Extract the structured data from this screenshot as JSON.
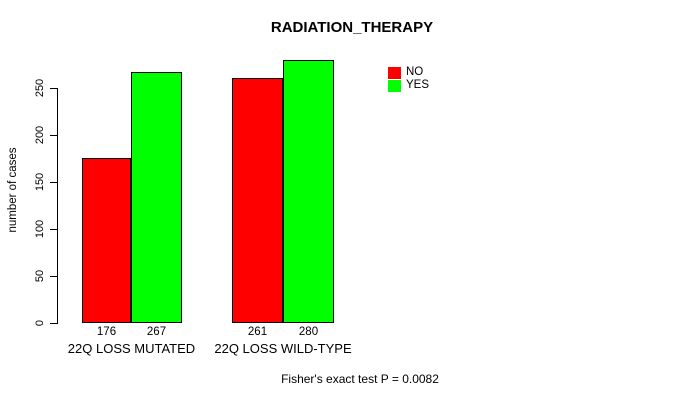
{
  "title": "RADIATION_THERAPY",
  "y_axis": {
    "label": "number of cases",
    "ticks": [
      0,
      50,
      100,
      150,
      200,
      250
    ]
  },
  "legend": {
    "items": [
      {
        "label": "NO",
        "color": "#ff0000"
      },
      {
        "label": "YES",
        "color": "#00ff00"
      }
    ]
  },
  "footer": "Fisher's exact test P = 0.0082",
  "chart_data": {
    "type": "bar",
    "title": "RADIATION_THERAPY",
    "categories": [
      "22Q LOSS MUTATED",
      "22Q LOSS WILD-TYPE"
    ],
    "series": [
      {
        "name": "NO",
        "color": "#ff0000",
        "values": [
          176,
          261
        ]
      },
      {
        "name": "YES",
        "color": "#00ff00",
        "values": [
          267,
          280
        ]
      }
    ],
    "bar_value_labels": [
      [
        176,
        267
      ],
      [
        261,
        280
      ]
    ],
    "xlabel": "",
    "ylabel": "number of cases",
    "yticks": [
      0,
      50,
      100,
      150,
      200,
      250
    ],
    "ylim": [
      0,
      295
    ],
    "grid": false,
    "legend_position": "top-right",
    "annotation": "Fisher's exact test P = 0.0082"
  }
}
